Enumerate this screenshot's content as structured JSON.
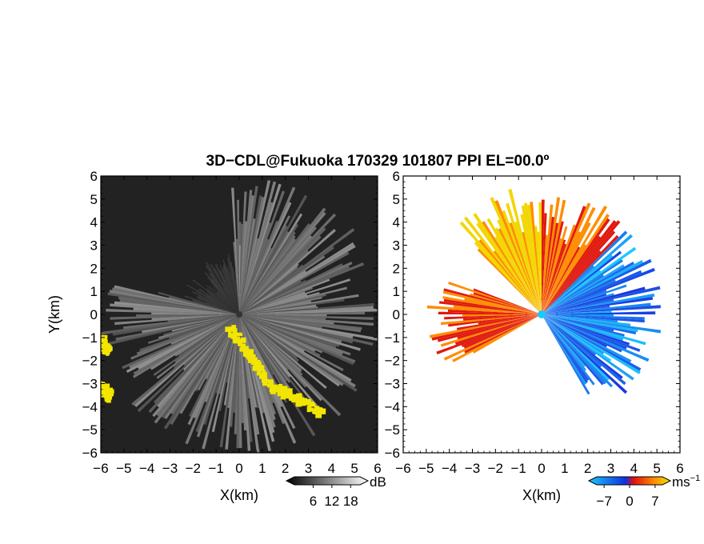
{
  "title": "3D−CDL@Fukuoka 170329 101807 PPI EL=00.0º",
  "colors": {
    "reflect_echo": "#f2e600",
    "velocity_zero": "#19c9ff"
  },
  "chart_data": [
    {
      "type": "heatmap",
      "panel": "reflectivity",
      "xlabel": "X(km)",
      "ylabel": "Y(km)",
      "xlim": [
        -6,
        6
      ],
      "ylim": [
        -6,
        6
      ],
      "xticks": [
        "−6",
        "−5",
        "−4",
        "−3",
        "−2",
        "−1",
        "0",
        "1",
        "2",
        "3",
        "4",
        "5",
        "6"
      ],
      "yticks": [
        "6",
        "5",
        "4",
        "3",
        "2",
        "1",
        "0",
        "−1",
        "−2",
        "−3",
        "−4",
        "−5",
        "−6"
      ],
      "colorbar": {
        "unit": "dB",
        "ticks": [
          "6",
          "12",
          "18"
        ],
        "range": [
          0,
          21
        ],
        "colormap": "gray"
      },
      "echo_regions": [
        {
          "x": [
            -0.4,
            1.6
          ],
          "y": [
            -0.6,
            -3.4
          ],
          "value": 20
        },
        {
          "x": [
            1.7,
            3.6
          ],
          "y": [
            -3.2,
            -4.3
          ],
          "value": 20
        },
        {
          "x": [
            -6.0,
            -5.7
          ],
          "y": [
            -1.1,
            -1.6
          ],
          "value": 20
        },
        {
          "x": [
            -6.0,
            -5.6
          ],
          "y": [
            -3.1,
            -3.6
          ],
          "value": 20
        }
      ]
    },
    {
      "type": "heatmap",
      "panel": "doppler_velocity",
      "xlabel": "X(km)",
      "xlim": [
        -6,
        6
      ],
      "ylim": [
        -6,
        6
      ],
      "xticks": [
        "−6",
        "−5",
        "−4",
        "−3",
        "−2",
        "−1",
        "0",
        "1",
        "2",
        "3",
        "4",
        "5",
        "6"
      ],
      "colorbar": {
        "unit": "ms",
        "unit_sup": "−1",
        "ticks": [
          "−7",
          "0",
          "7"
        ],
        "range": [
          -9,
          9
        ],
        "colormap": "cyan-blue-red-yellow"
      },
      "sectors": [
        {
          "az_from": 315,
          "az_to": 360,
          "max_range": 5.8,
          "velocity": 7
        },
        {
          "az_from": 0,
          "az_to": 45,
          "max_range": 5.5,
          "velocity": 3
        },
        {
          "az_from": 45,
          "az_to": 150,
          "max_range": 5.3,
          "velocity": -3
        },
        {
          "az_from": 240,
          "az_to": 290,
          "max_range": 5.0,
          "velocity": 3
        }
      ]
    }
  ]
}
